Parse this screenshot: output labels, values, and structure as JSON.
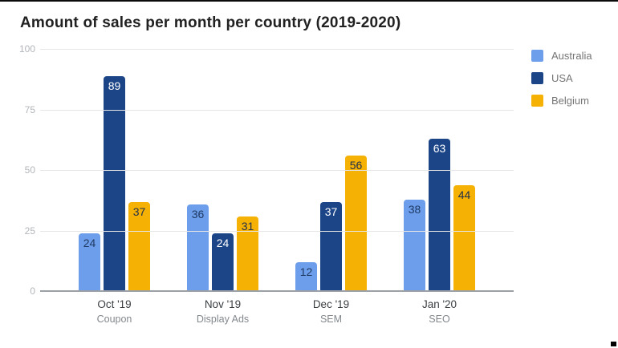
{
  "chart_data": {
    "type": "bar",
    "title": "Amount of sales per month per country (2019-2020)",
    "xlabel": "",
    "ylabel": "",
    "ylim": [
      0,
      100
    ],
    "y_ticks": [
      0,
      25,
      50,
      75,
      100
    ],
    "grid": true,
    "legend_position": "right",
    "categories": [
      {
        "month": "Oct '19",
        "channel": "Coupon"
      },
      {
        "month": "Nov '19",
        "channel": "Display Ads"
      },
      {
        "month": "Dec '19",
        "channel": "SEM"
      },
      {
        "month": "Jan '20",
        "channel": "SEO"
      }
    ],
    "series": [
      {
        "name": "Australia",
        "color": "#6d9eeb",
        "label_color": "#1f3a63",
        "values": [
          24,
          36,
          12,
          38
        ]
      },
      {
        "name": "USA",
        "color": "#1c4587",
        "label_color": "#ffffff",
        "values": [
          89,
          24,
          37,
          63
        ]
      },
      {
        "name": "Belgium",
        "color": "#f6b105",
        "label_color": "#23314a",
        "values": [
          37,
          31,
          56,
          44
        ]
      }
    ]
  },
  "legend": {
    "items": [
      {
        "label": "Australia",
        "color": "#6d9eeb"
      },
      {
        "label": "USA",
        "color": "#1c4587"
      },
      {
        "label": "Belgium",
        "color": "#f6b105"
      }
    ]
  },
  "frame": {
    "top_border_color": "#0a0a0a",
    "corner_mark_color": "#000000"
  }
}
